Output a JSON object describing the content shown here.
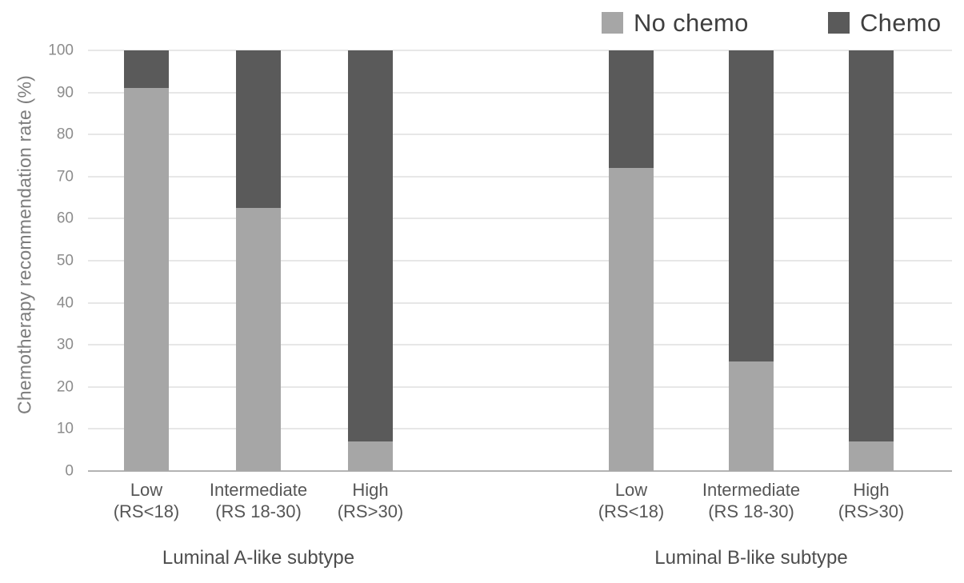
{
  "chart_data": {
    "type": "bar",
    "stacked": true,
    "title": "",
    "ylabel": "Chemotherapy recommendation rate (%)",
    "xlabel": "",
    "ylim": [
      0,
      100
    ],
    "yticks": [
      0,
      10,
      20,
      30,
      40,
      50,
      60,
      70,
      80,
      90,
      100
    ],
    "grid": "horizontal",
    "legend_position": "top-right",
    "legend": [
      {
        "label": "No chemo",
        "color": "#a6a6a6"
      },
      {
        "label": "Chemo",
        "color": "#5a5a5a"
      }
    ],
    "groups": [
      {
        "title": "Luminal A-like subtype",
        "categories": [
          {
            "line1": "Low",
            "line2": "(RS<18)"
          },
          {
            "line1": "Intermediate",
            "line2": "(RS 18-30)"
          },
          {
            "line1": "High",
            "line2": "(RS>30)"
          }
        ],
        "series": [
          {
            "name": "No chemo",
            "values": [
              91,
              62.5,
              7
            ]
          },
          {
            "name": "Chemo",
            "values": [
              9,
              37.5,
              93
            ]
          }
        ]
      },
      {
        "title": "Luminal B-like subtype",
        "categories": [
          {
            "line1": "Low",
            "line2": "(RS<18)"
          },
          {
            "line1": "Intermediate",
            "line2": "(RS 18-30)"
          },
          {
            "line1": "High",
            "line2": "(RS>30)"
          }
        ],
        "series": [
          {
            "name": "No chemo",
            "values": [
              72,
              26,
              7
            ]
          },
          {
            "name": "Chemo",
            "values": [
              28,
              74,
              93
            ]
          }
        ]
      }
    ]
  }
}
